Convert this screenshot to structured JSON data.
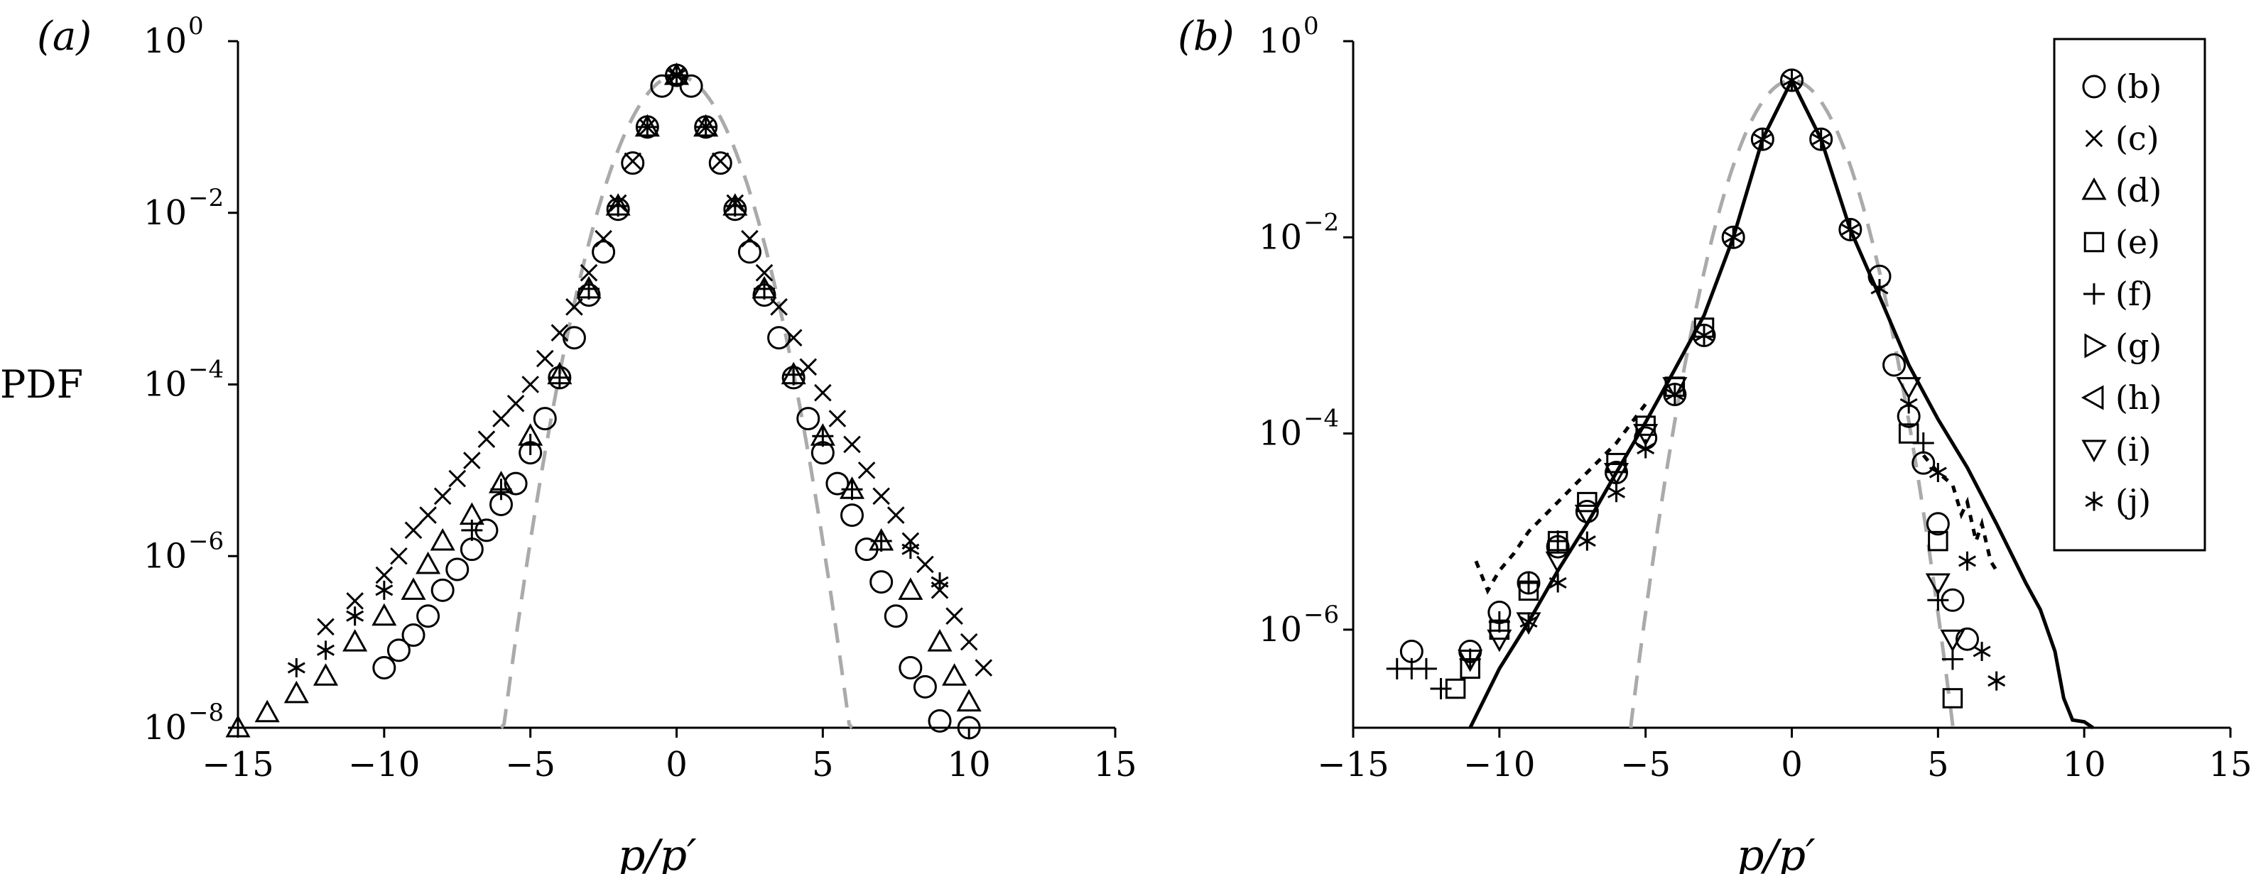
{
  "chart_data": [
    {
      "panel": "(a)",
      "type": "scatter",
      "xlabel": "p/p′",
      "ylabel": "PDF",
      "xlim": [
        -15,
        15
      ],
      "ylim": [
        1e-08,
        1
      ],
      "yscale": "log",
      "x_ticks": [
        "−15",
        "−10",
        "−5",
        "0",
        "5",
        "10",
        "15"
      ],
      "y_ticks": [
        "10",
        "10",
        "10",
        "10",
        "10"
      ],
      "y_tick_exponents": [
        "−8",
        "−6",
        "−4",
        "−2",
        "0"
      ],
      "gaussian_reference": {
        "style": "grey dashed",
        "x_range": [
          -6,
          6
        ]
      },
      "series": [
        {
          "marker": "circle",
          "points": [
            [
              -10,
              5e-08
            ],
            [
              -9.5,
              8e-08
            ],
            [
              -9,
              1.2e-07
            ],
            [
              -8.5,
              2e-07
            ],
            [
              -8,
              4e-07
            ],
            [
              -7.5,
              7e-07
            ],
            [
              -7,
              1.2e-06
            ],
            [
              -6.5,
              2e-06
            ],
            [
              -6,
              4e-06
            ],
            [
              -5.5,
              7e-06
            ],
            [
              -5,
              1.6e-05
            ],
            [
              -4.5,
              4e-05
            ],
            [
              -4,
              0.00012
            ],
            [
              -3.5,
              0.00035
            ],
            [
              -3,
              0.0011
            ],
            [
              -2.5,
              0.0035
            ],
            [
              -2,
              0.011
            ],
            [
              -1.5,
              0.038
            ],
            [
              -1,
              0.1
            ],
            [
              -0.5,
              0.3
            ],
            [
              0,
              0.4
            ],
            [
              0.5,
              0.3
            ],
            [
              1,
              0.1
            ],
            [
              1.5,
              0.038
            ],
            [
              2,
              0.011
            ],
            [
              2.5,
              0.0035
            ],
            [
              3,
              0.0011
            ],
            [
              3.5,
              0.00035
            ],
            [
              4,
              0.00012
            ],
            [
              4.5,
              4e-05
            ],
            [
              5,
              1.6e-05
            ],
            [
              5.5,
              7e-06
            ],
            [
              6,
              3e-06
            ],
            [
              6.5,
              1.2e-06
            ],
            [
              7,
              5e-07
            ],
            [
              7.5,
              2e-07
            ],
            [
              8,
              5e-08
            ],
            [
              8.5,
              3e-08
            ],
            [
              9,
              1.2e-08
            ],
            [
              10,
              1e-08
            ]
          ]
        },
        {
          "marker": "x",
          "points": [
            [
              -12,
              1.5e-07
            ],
            [
              -11,
              3e-07
            ],
            [
              -10,
              6e-07
            ],
            [
              -9.5,
              1e-06
            ],
            [
              -9,
              2e-06
            ],
            [
              -8.5,
              3e-06
            ],
            [
              -8,
              5e-06
            ],
            [
              -7.5,
              8e-06
            ],
            [
              -7,
              1.3e-05
            ],
            [
              -6.5,
              2.3e-05
            ],
            [
              -6,
              4e-05
            ],
            [
              -5.5,
              6e-05
            ],
            [
              -5,
              0.0001
            ],
            [
              -4.5,
              0.0002
            ],
            [
              -4,
              0.0004
            ],
            [
              -3.5,
              0.0008
            ],
            [
              -3,
              0.002
            ],
            [
              -2.5,
              0.005
            ],
            [
              -2,
              0.013
            ],
            [
              -1.5,
              0.04
            ],
            [
              -1,
              0.1
            ],
            [
              0,
              0.4
            ],
            [
              1,
              0.1
            ],
            [
              1.5,
              0.04
            ],
            [
              2,
              0.013
            ],
            [
              2.5,
              0.005
            ],
            [
              3,
              0.002
            ],
            [
              3.5,
              0.0008
            ],
            [
              4,
              0.00035
            ],
            [
              4.5,
              0.00016
            ],
            [
              5,
              8e-05
            ],
            [
              5.5,
              4e-05
            ],
            [
              6,
              2e-05
            ],
            [
              6.5,
              1e-05
            ],
            [
              7,
              5e-06
            ],
            [
              7.5,
              3e-06
            ],
            [
              8,
              1.5e-06
            ],
            [
              8.5,
              8e-07
            ],
            [
              9,
              4e-07
            ],
            [
              9.5,
              2e-07
            ],
            [
              10,
              1e-07
            ],
            [
              10.5,
              5e-08
            ]
          ]
        },
        {
          "marker": "triangle-up",
          "points": [
            [
              -15,
              1e-08
            ],
            [
              -14,
              1.5e-08
            ],
            [
              -13,
              2.5e-08
            ],
            [
              -12,
              4e-08
            ],
            [
              -11,
              1e-07
            ],
            [
              -10,
              2e-07
            ],
            [
              -9,
              4e-07
            ],
            [
              -8.5,
              8e-07
            ],
            [
              -8,
              1.5e-06
            ],
            [
              -7,
              3e-06
            ],
            [
              -6,
              7e-06
            ],
            [
              -5,
              2.5e-05
            ],
            [
              -4,
              0.00013
            ],
            [
              -3,
              0.0013
            ],
            [
              -2,
              0.012
            ],
            [
              -1,
              0.1
            ],
            [
              0,
              0.4
            ],
            [
              1,
              0.1
            ],
            [
              2,
              0.012
            ],
            [
              3,
              0.0013
            ],
            [
              4,
              0.00013
            ],
            [
              5,
              2.5e-05
            ],
            [
              6,
              6e-06
            ],
            [
              7,
              1.5e-06
            ],
            [
              8,
              4e-07
            ],
            [
              9,
              1e-07
            ],
            [
              9.5,
              4e-08
            ],
            [
              10,
              2e-08
            ]
          ]
        },
        {
          "marker": "plus",
          "points": [
            [
              -7,
              2e-06
            ],
            [
              -6,
              6e-06
            ],
            [
              -5,
              2e-05
            ],
            [
              -4,
              0.00012
            ],
            [
              -3,
              0.0013
            ],
            [
              -2,
              0.012
            ],
            [
              -1,
              0.1
            ],
            [
              0,
              0.4
            ],
            [
              1,
              0.1
            ],
            [
              2,
              0.012
            ],
            [
              3,
              0.0013
            ],
            [
              4,
              0.00013
            ],
            [
              5,
              2.5e-05
            ],
            [
              6,
              6e-06
            ],
            [
              7,
              1.5e-06
            ]
          ]
        },
        {
          "marker": "asterisk",
          "points": [
            [
              -13,
              5e-08
            ],
            [
              -12,
              8e-08
            ],
            [
              -11,
              2e-07
            ],
            [
              -10,
              4e-07
            ],
            [
              0,
              0.4
            ],
            [
              8,
              1.2e-06
            ],
            [
              9,
              5e-07
            ]
          ]
        }
      ]
    },
    {
      "panel": "(b)",
      "type": "scatter",
      "xlabel": "p/p′",
      "ylabel": "",
      "xlim": [
        -15,
        15
      ],
      "ylim": [
        1e-07,
        1
      ],
      "yscale": "log",
      "x_ticks": [
        "−15",
        "−10",
        "−5",
        "0",
        "5",
        "10",
        "15"
      ],
      "y_ticks": [
        "10",
        "10",
        "10",
        "10"
      ],
      "y_tick_exponents": [
        "−6",
        "−4",
        "−2",
        "0"
      ],
      "gaussian_reference": {
        "style": "grey dashed",
        "x_range": [
          -5.5,
          5.5
        ]
      },
      "legend": {
        "placement": "top-right",
        "entries": [
          {
            "marker": "circle",
            "label": "(b)"
          },
          {
            "marker": "x",
            "label": "(c)"
          },
          {
            "marker": "triangle-up",
            "label": "(d)"
          },
          {
            "marker": "square",
            "label": "(e)"
          },
          {
            "marker": "plus",
            "label": "(f)"
          },
          {
            "marker": "triangle-right",
            "label": "(g)"
          },
          {
            "marker": "triangle-left",
            "label": "(h)"
          },
          {
            "marker": "triangle-down",
            "label": "(i)"
          },
          {
            "marker": "asterisk",
            "label": "(j)"
          }
        ]
      },
      "solid_curve": [
        [
          -11,
          1e-07
        ],
        [
          -10,
          4e-07
        ],
        [
          -9,
          1.2e-06
        ],
        [
          -8,
          4e-06
        ],
        [
          -7,
          1.2e-05
        ],
        [
          -6,
          4e-05
        ],
        [
          -5,
          0.00013
        ],
        [
          -4,
          0.00045
        ],
        [
          -3,
          0.0016
        ],
        [
          -2,
          0.01
        ],
        [
          -1,
          0.1
        ],
        [
          0,
          0.4
        ],
        [
          1,
          0.1
        ],
        [
          2,
          0.012
        ],
        [
          3,
          0.0025
        ],
        [
          4,
          0.0005
        ],
        [
          5,
          0.00014
        ],
        [
          6,
          4.5e-05
        ],
        [
          7,
          1.2e-05
        ],
        [
          7.5,
          6e-06
        ],
        [
          8,
          3e-06
        ],
        [
          8.5,
          1.6e-06
        ],
        [
          9,
          6e-07
        ],
        [
          9.3,
          2e-07
        ],
        [
          9.6,
          1.2e-07
        ],
        [
          10,
          1.15e-07
        ],
        [
          10.3,
          1e-07
        ]
      ],
      "dotted_curves": [
        [
          [
            -10.8,
            5e-06
          ],
          [
            -10.4,
            2.5e-06
          ],
          [
            -10,
            4e-06
          ],
          [
            -9.5,
            6e-06
          ],
          [
            -9,
            1e-05
          ],
          [
            -8,
            2e-05
          ],
          [
            -7,
            4e-05
          ],
          [
            -6,
            8e-05
          ],
          [
            -5,
            0.0002
          ]
        ],
        [
          [
            4.5,
            6e-05
          ],
          [
            5,
            4e-05
          ],
          [
            5.5,
            3e-05
          ],
          [
            5.8,
            1.5e-05
          ],
          [
            6,
            2e-05
          ],
          [
            6.3,
            8e-06
          ],
          [
            6.5,
            1.2e-05
          ],
          [
            6.8,
            5e-06
          ],
          [
            7,
            4e-06
          ]
        ]
      ],
      "series": [
        {
          "marker": "circle",
          "points": [
            [
              -13,
              6e-07
            ],
            [
              -11,
              6e-07
            ],
            [
              -10,
              1.5e-06
            ],
            [
              -9,
              3e-06
            ],
            [
              -8,
              7e-06
            ],
            [
              -7,
              1.6e-05
            ],
            [
              -6,
              4e-05
            ],
            [
              -5,
              9e-05
            ],
            [
              -4,
              0.00025
            ],
            [
              -3,
              0.001
            ],
            [
              -2,
              0.01
            ],
            [
              -1,
              0.1
            ],
            [
              0,
              0.4
            ],
            [
              1,
              0.1
            ],
            [
              2,
              0.012
            ],
            [
              3,
              0.004
            ],
            [
              3.5,
              0.0005
            ],
            [
              4,
              0.00015
            ],
            [
              4.5,
              5e-05
            ],
            [
              5,
              1.2e-05
            ],
            [
              5.5,
              2e-06
            ],
            [
              6,
              8e-07
            ]
          ]
        },
        {
          "marker": "square",
          "points": [
            [
              -11.5,
              2.5e-07
            ],
            [
              -11,
              4e-07
            ],
            [
              -10,
              1e-06
            ],
            [
              -9,
              2.5e-06
            ],
            [
              -8,
              8e-06
            ],
            [
              -7,
              2e-05
            ],
            [
              -6,
              5e-05
            ],
            [
              -5,
              0.00012
            ],
            [
              -4,
              0.0003
            ],
            [
              -3,
              0.0012
            ],
            [
              4,
              0.0001
            ],
            [
              5,
              8e-06
            ],
            [
              5.5,
              2e-07
            ]
          ]
        },
        {
          "marker": "plus",
          "points": [
            [
              -13.5,
              4e-07
            ],
            [
              -13,
              4e-07
            ],
            [
              -12.5,
              4e-07
            ],
            [
              -12,
              2.5e-07
            ],
            [
              -11,
              5e-07
            ],
            [
              -10,
              1.2e-06
            ],
            [
              -9,
              3e-06
            ],
            [
              -8,
              8e-06
            ],
            [
              4.5,
              8e-05
            ],
            [
              5,
              2e-06
            ],
            [
              5.5,
              5e-07
            ]
          ]
        },
        {
          "marker": "triangle-down",
          "points": [
            [
              -11,
              5e-07
            ],
            [
              -10,
              8e-07
            ],
            [
              -9,
              1.2e-06
            ],
            [
              -8,
              5e-06
            ],
            [
              -7,
              1.5e-05
            ],
            [
              -6,
              4e-05
            ],
            [
              -5,
              0.0001
            ],
            [
              -4,
              0.0003
            ],
            [
              4,
              0.0003
            ],
            [
              5,
              3e-06
            ],
            [
              5.5,
              8e-07
            ]
          ]
        },
        {
          "marker": "asterisk",
          "points": [
            [
              -9,
              1.2e-06
            ],
            [
              -8,
              3e-06
            ],
            [
              -7,
              8e-06
            ],
            [
              -6,
              2.5e-05
            ],
            [
              -5,
              7e-05
            ],
            [
              -4,
              0.00025
            ],
            [
              -3,
              0.001
            ],
            [
              -2,
              0.01
            ],
            [
              -1,
              0.1
            ],
            [
              0,
              0.4
            ],
            [
              1,
              0.1
            ],
            [
              2,
              0.012
            ],
            [
              3,
              0.003
            ],
            [
              4,
              0.0002
            ],
            [
              5,
              4e-05
            ],
            [
              6,
              5e-06
            ],
            [
              6.5,
              6e-07
            ],
            [
              7,
              3e-07
            ]
          ]
        }
      ]
    }
  ]
}
